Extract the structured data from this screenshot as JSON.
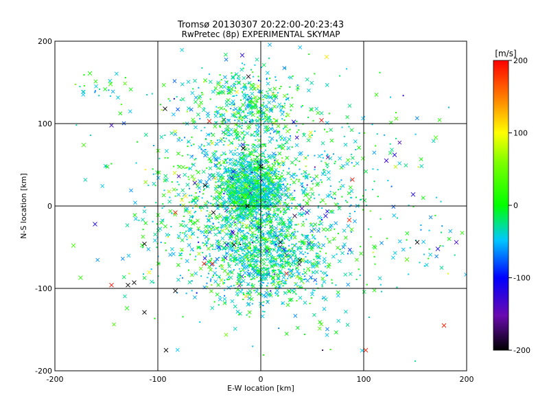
{
  "chart_data": {
    "type": "scatter",
    "title": "Tromsø 20130307 20:22:00-20:23:43",
    "subtitle": "RwPretec (8p) EXPERIMENTAL SKYMAP",
    "xlabel": "E-W location [km]",
    "ylabel": "N-S location [km]",
    "xlim": [
      -200,
      200
    ],
    "ylim": [
      -200,
      200
    ],
    "xticks": [
      -200,
      -100,
      0,
      100,
      200
    ],
    "yticks": [
      -200,
      -100,
      0,
      100,
      200
    ],
    "grid": true,
    "colorbar": {
      "label": "[m/s]",
      "min": -200,
      "max": 200,
      "ticks": [
        -200,
        -100,
        0,
        100,
        200
      ],
      "colormap": "rainbow (black-purple-blue-cyan-green-yellow-orange-red)"
    },
    "clusters": [
      {
        "cx": -10,
        "cy": 20,
        "sx": 16,
        "sy": 20,
        "n": 1100
      },
      {
        "cx": -10,
        "cy": 120,
        "sx": 22,
        "sy": 25,
        "n": 380
      },
      {
        "cx": 5,
        "cy": -60,
        "sx": 30,
        "sy": 30,
        "n": 1000
      },
      {
        "cx": -60,
        "cy": -20,
        "sx": 30,
        "sy": 45,
        "n": 260
      },
      {
        "cx": 50,
        "cy": 30,
        "sx": 35,
        "sy": 55,
        "n": 260
      },
      {
        "cx": -40,
        "cy": 80,
        "sx": 35,
        "sy": 40,
        "n": 180
      },
      {
        "cx": 0,
        "cy": 0,
        "sx": 75,
        "sy": 75,
        "n": 450
      },
      {
        "cx": -150,
        "cy": 140,
        "sx": 20,
        "sy": 10,
        "n": 25
      },
      {
        "cx": 165,
        "cy": -45,
        "sx": 18,
        "sy": 20,
        "n": 30
      },
      {
        "cx": 150,
        "cy": 60,
        "sx": 25,
        "sy": 25,
        "n": 18
      }
    ],
    "notable_points": [
      {
        "x": -145,
        "y": 98,
        "v": -130
      },
      {
        "x": -93,
        "y": 118,
        "v": -200
      },
      {
        "x": -18,
        "y": 183,
        "v": -120
      },
      {
        "x": -12,
        "y": 157,
        "v": -190
      },
      {
        "x": 64,
        "y": 181,
        "v": 110
      },
      {
        "x": -50,
        "y": 103,
        "v": 190
      },
      {
        "x": -17,
        "y": 70,
        "v": -200
      },
      {
        "x": 32,
        "y": 102,
        "v": -110
      },
      {
        "x": 59,
        "y": 104,
        "v": 195
      },
      {
        "x": -172,
        "y": 74,
        "v": 30
      },
      {
        "x": 122,
        "y": 55,
        "v": -130
      },
      {
        "x": 130,
        "y": 62,
        "v": -110
      },
      {
        "x": 148,
        "y": 14,
        "v": -110
      },
      {
        "x": -64,
        "y": 28,
        "v": -130
      },
      {
        "x": -54,
        "y": 25,
        "v": -200
      },
      {
        "x": -73,
        "y": 12,
        "v": 110
      },
      {
        "x": 89,
        "y": 32,
        "v": 190
      },
      {
        "x": -161,
        "y": -22,
        "v": -110
      },
      {
        "x": -83,
        "y": -8,
        "v": 190
      },
      {
        "x": -46,
        "y": -8,
        "v": -200
      },
      {
        "x": -33,
        "y": -47,
        "v": -110
      },
      {
        "x": -27,
        "y": -33,
        "v": -150
      },
      {
        "x": -26,
        "y": -47,
        "v": -200
      },
      {
        "x": -13,
        "y": 0,
        "v": -200
      },
      {
        "x": 0,
        "y": 48,
        "v": -200
      },
      {
        "x": 40,
        "y": -3,
        "v": -130
      },
      {
        "x": 33,
        "y": -12,
        "v": -180
      },
      {
        "x": 45,
        "y": -8,
        "v": -120
      },
      {
        "x": 63,
        "y": -12,
        "v": -110
      },
      {
        "x": 86,
        "y": -17,
        "v": 190
      },
      {
        "x": 19,
        "y": -44,
        "v": -200
      },
      {
        "x": 38,
        "y": -66,
        "v": -200
      },
      {
        "x": 25,
        "y": -82,
        "v": 190
      },
      {
        "x": -113,
        "y": -46,
        "v": -200
      },
      {
        "x": -113,
        "y": -129,
        "v": -200
      },
      {
        "x": -123,
        "y": -93,
        "v": -200
      },
      {
        "x": -129,
        "y": -96,
        "v": -200
      },
      {
        "x": -145,
        "y": -96,
        "v": 195
      },
      {
        "x": -83,
        "y": -103,
        "v": -200
      },
      {
        "x": -92,
        "y": -175,
        "v": -200
      },
      {
        "x": -55,
        "y": -70,
        "v": 190
      },
      {
        "x": -47,
        "y": -70,
        "v": 190
      },
      {
        "x": 102,
        "y": -175,
        "v": 190
      },
      {
        "x": 178,
        "y": -145,
        "v": 190
      },
      {
        "x": 172,
        "y": -52,
        "v": -110
      },
      {
        "x": 152,
        "y": -44,
        "v": -200
      },
      {
        "x": 190,
        "y": -44,
        "v": -130
      },
      {
        "x": -182,
        "y": -48,
        "v": 30
      },
      {
        "x": -130,
        "y": -124,
        "v": 10
      },
      {
        "x": -175,
        "y": -87,
        "v": 20
      },
      {
        "x": 142,
        "y": -65,
        "v": 40
      },
      {
        "x": 170,
        "y": 83,
        "v": 30
      },
      {
        "x": -146,
        "y": 148,
        "v": 25
      },
      {
        "x": -166,
        "y": 161,
        "v": 10
      }
    ]
  }
}
